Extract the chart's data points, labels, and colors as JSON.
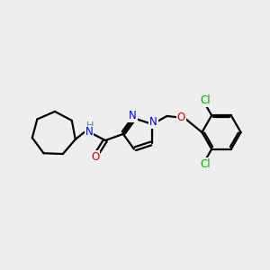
{
  "background_color": "#eeeeee",
  "bond_color": "#000000",
  "bond_width": 1.6,
  "atom_colors": {
    "N": "#0000cc",
    "O": "#cc0000",
    "Cl": "#00aa00",
    "H": "#448888",
    "C": "#000000"
  },
  "font_size_atom": 8.5,
  "font_size_cl": 8.5,
  "xlim": [
    0,
    10
  ],
  "ylim": [
    0,
    10
  ]
}
